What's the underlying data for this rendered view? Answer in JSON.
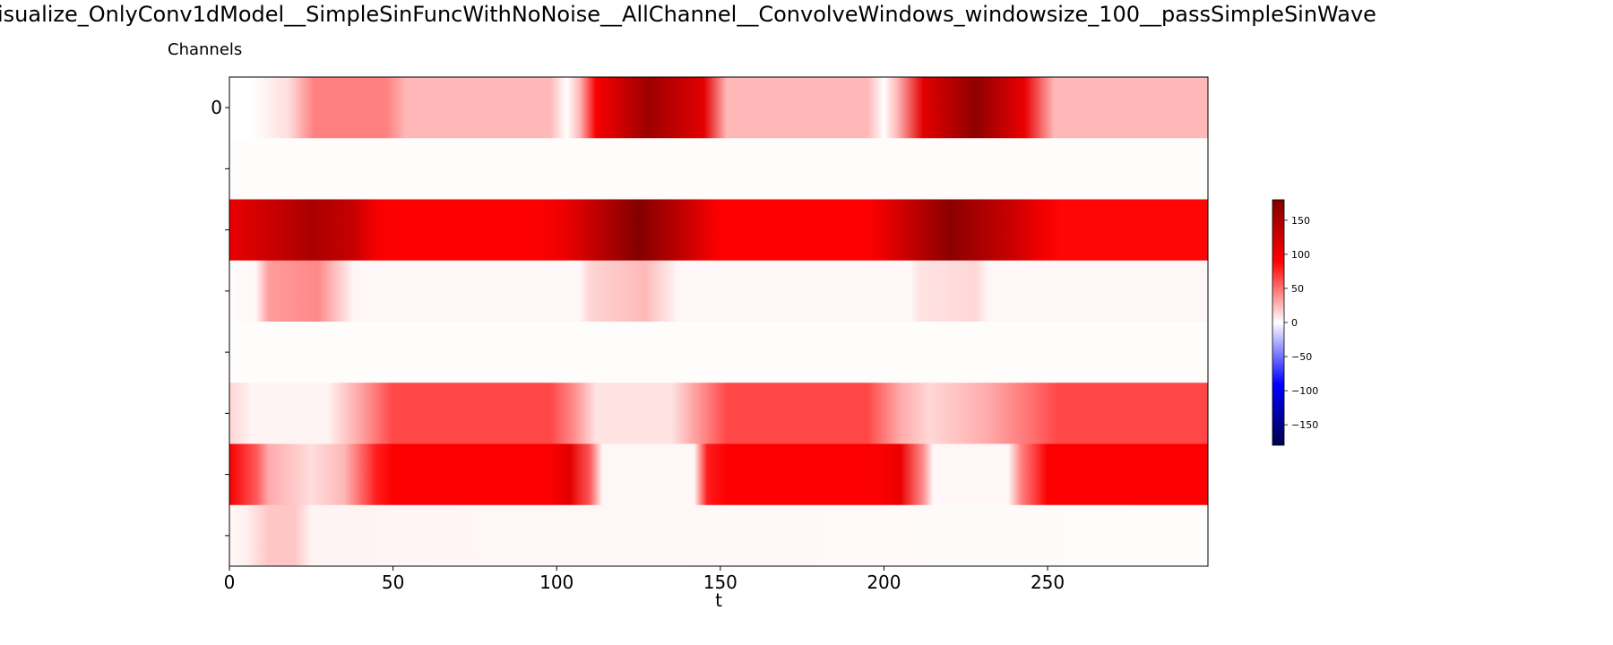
{
  "figure": {
    "title": "isualize_OnlyConv1dModel__SimpleSinFuncWithNoNoise__AllChannel__ConvolveWindows_windowsize_100__passSimpleSinWave"
  },
  "chart_data": {
    "type": "heatmap",
    "title": "isualize_OnlyConv1dModel__SimpleSinFuncWithNoNoise__AllChannel__ConvolveWindows_windowsize_100__passSimpleSinWave",
    "ylabel": "Channels",
    "xlabel": "t",
    "colormap": "seismic",
    "x_range": [
      0,
      299
    ],
    "x_ticks": [
      0,
      50,
      100,
      150,
      200,
      250
    ],
    "y_ticks": [
      0,
      1,
      2,
      3,
      4,
      5,
      6,
      7
    ],
    "y_tick_labels": [
      "0",
      "",
      "",
      "",
      "",
      "",
      "",
      ""
    ],
    "color_range": [
      -180,
      180
    ],
    "colorbar_ticks": [
      150,
      100,
      50,
      0,
      -50,
      -100,
      -150
    ],
    "colorbar_tick_labels": [
      "150",
      "100",
      "50",
      "0",
      "−50",
      "−100",
      "−150"
    ],
    "rows": [
      {
        "channel": 0,
        "stops": [
          [
            0,
            0
          ],
          [
            7,
            0
          ],
          [
            18,
            12
          ],
          [
            26,
            45
          ],
          [
            48,
            45
          ],
          [
            54,
            25
          ],
          [
            98,
            25
          ],
          [
            103,
            0
          ],
          [
            107,
            25
          ],
          [
            112,
            95
          ],
          [
            128,
            160
          ],
          [
            145,
            110
          ],
          [
            152,
            25
          ],
          [
            195,
            25
          ],
          [
            200,
            0
          ],
          [
            204,
            25
          ],
          [
            212,
            110
          ],
          [
            228,
            170
          ],
          [
            243,
            105
          ],
          [
            252,
            25
          ],
          [
            299,
            25
          ]
        ]
      },
      {
        "channel": 1,
        "stops": [
          [
            0,
            1
          ],
          [
            299,
            1
          ]
        ]
      },
      {
        "channel": 2,
        "stops": [
          [
            0,
            105
          ],
          [
            8,
            120
          ],
          [
            25,
            150
          ],
          [
            38,
            130
          ],
          [
            45,
            95
          ],
          [
            49,
            92
          ],
          [
            95,
            92
          ],
          [
            103,
            105
          ],
          [
            125,
            178
          ],
          [
            140,
            128
          ],
          [
            148,
            95
          ],
          [
            152,
            90
          ],
          [
            195,
            90
          ],
          [
            200,
            105
          ],
          [
            220,
            172
          ],
          [
            240,
            125
          ],
          [
            250,
            95
          ],
          [
            254,
            88
          ],
          [
            299,
            88
          ]
        ]
      },
      {
        "channel": 3,
        "stops": [
          [
            0,
            1
          ],
          [
            8,
            3
          ],
          [
            12,
            35
          ],
          [
            27,
            42
          ],
          [
            38,
            3
          ],
          [
            107,
            3
          ],
          [
            110,
            15
          ],
          [
            127,
            25
          ],
          [
            137,
            3
          ],
          [
            208,
            3
          ],
          [
            211,
            10
          ],
          [
            228,
            14
          ],
          [
            232,
            3
          ],
          [
            299,
            3
          ]
        ]
      },
      {
        "channel": 4,
        "stops": [
          [
            0,
            1
          ],
          [
            299,
            1
          ]
        ]
      },
      {
        "channel": 5,
        "stops": [
          [
            0,
            15
          ],
          [
            7,
            4
          ],
          [
            30,
            4
          ],
          [
            40,
            32
          ],
          [
            50,
            65
          ],
          [
            98,
            65
          ],
          [
            105,
            42
          ],
          [
            112,
            10
          ],
          [
            135,
            10
          ],
          [
            145,
            42
          ],
          [
            152,
            65
          ],
          [
            195,
            65
          ],
          [
            205,
            30
          ],
          [
            214,
            14
          ],
          [
            232,
            30
          ],
          [
            245,
            50
          ],
          [
            253,
            65
          ],
          [
            299,
            65
          ]
        ]
      },
      {
        "channel": 6,
        "stops": [
          [
            0,
            95
          ],
          [
            8,
            60
          ],
          [
            12,
            30
          ],
          [
            25,
            12
          ],
          [
            35,
            25
          ],
          [
            45,
            80
          ],
          [
            50,
            92
          ],
          [
            98,
            92
          ],
          [
            104,
            110
          ],
          [
            110,
            60
          ],
          [
            114,
            3
          ],
          [
            142,
            3
          ],
          [
            146,
            80
          ],
          [
            152,
            92
          ],
          [
            198,
            92
          ],
          [
            205,
            105
          ],
          [
            212,
            40
          ],
          [
            215,
            3
          ],
          [
            238,
            3
          ],
          [
            242,
            45
          ],
          [
            250,
            92
          ],
          [
            299,
            92
          ]
        ]
      },
      {
        "channel": 7,
        "stops": [
          [
            0,
            3
          ],
          [
            5,
            5
          ],
          [
            12,
            20
          ],
          [
            20,
            20
          ],
          [
            25,
            4
          ],
          [
            299,
            1
          ]
        ]
      }
    ]
  }
}
